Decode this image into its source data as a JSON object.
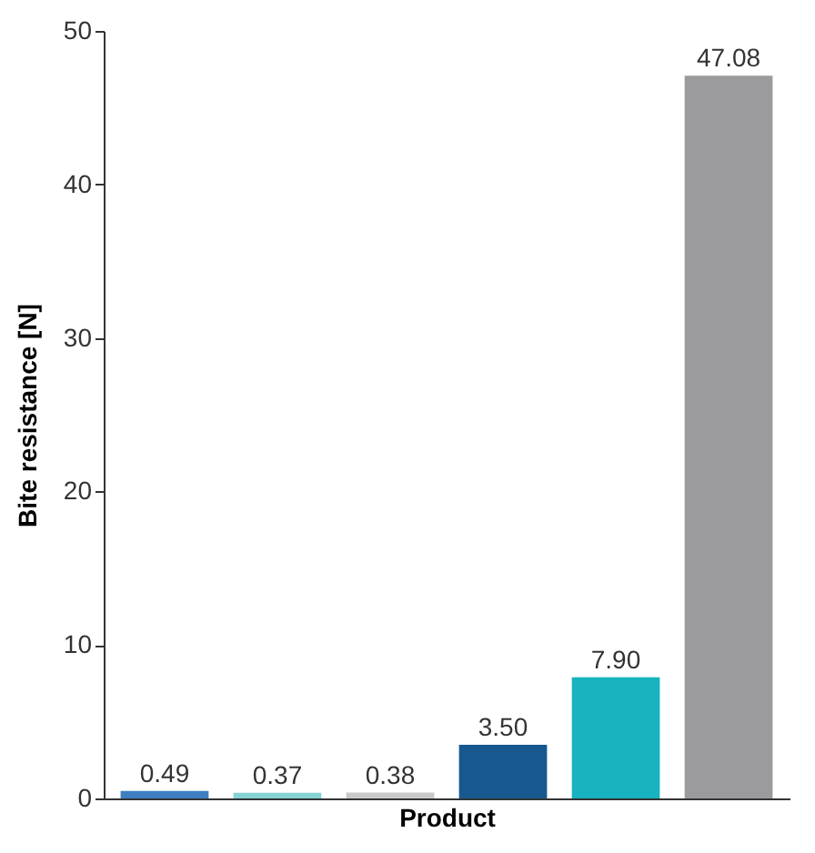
{
  "chart_data": {
    "type": "bar",
    "xlabel": "Product",
    "ylabel": "Bite resistance [N]",
    "categories": [
      null,
      null,
      null,
      null,
      null,
      null
    ],
    "values": [
      0.49,
      0.37,
      0.38,
      3.5,
      7.9,
      47.08
    ],
    "value_labels": [
      "0.49",
      "0.37",
      "0.38",
      "3.50",
      "7.90",
      "47.08"
    ],
    "colors": [
      "#3d7fc0",
      "#86d3d3",
      "#c9c9c9",
      "#17588f",
      "#17b3bf",
      "#9b9b9d"
    ],
    "ylim": [
      0,
      50
    ],
    "yticks": [
      0,
      10,
      20,
      30,
      40,
      50
    ],
    "grid": false
  }
}
